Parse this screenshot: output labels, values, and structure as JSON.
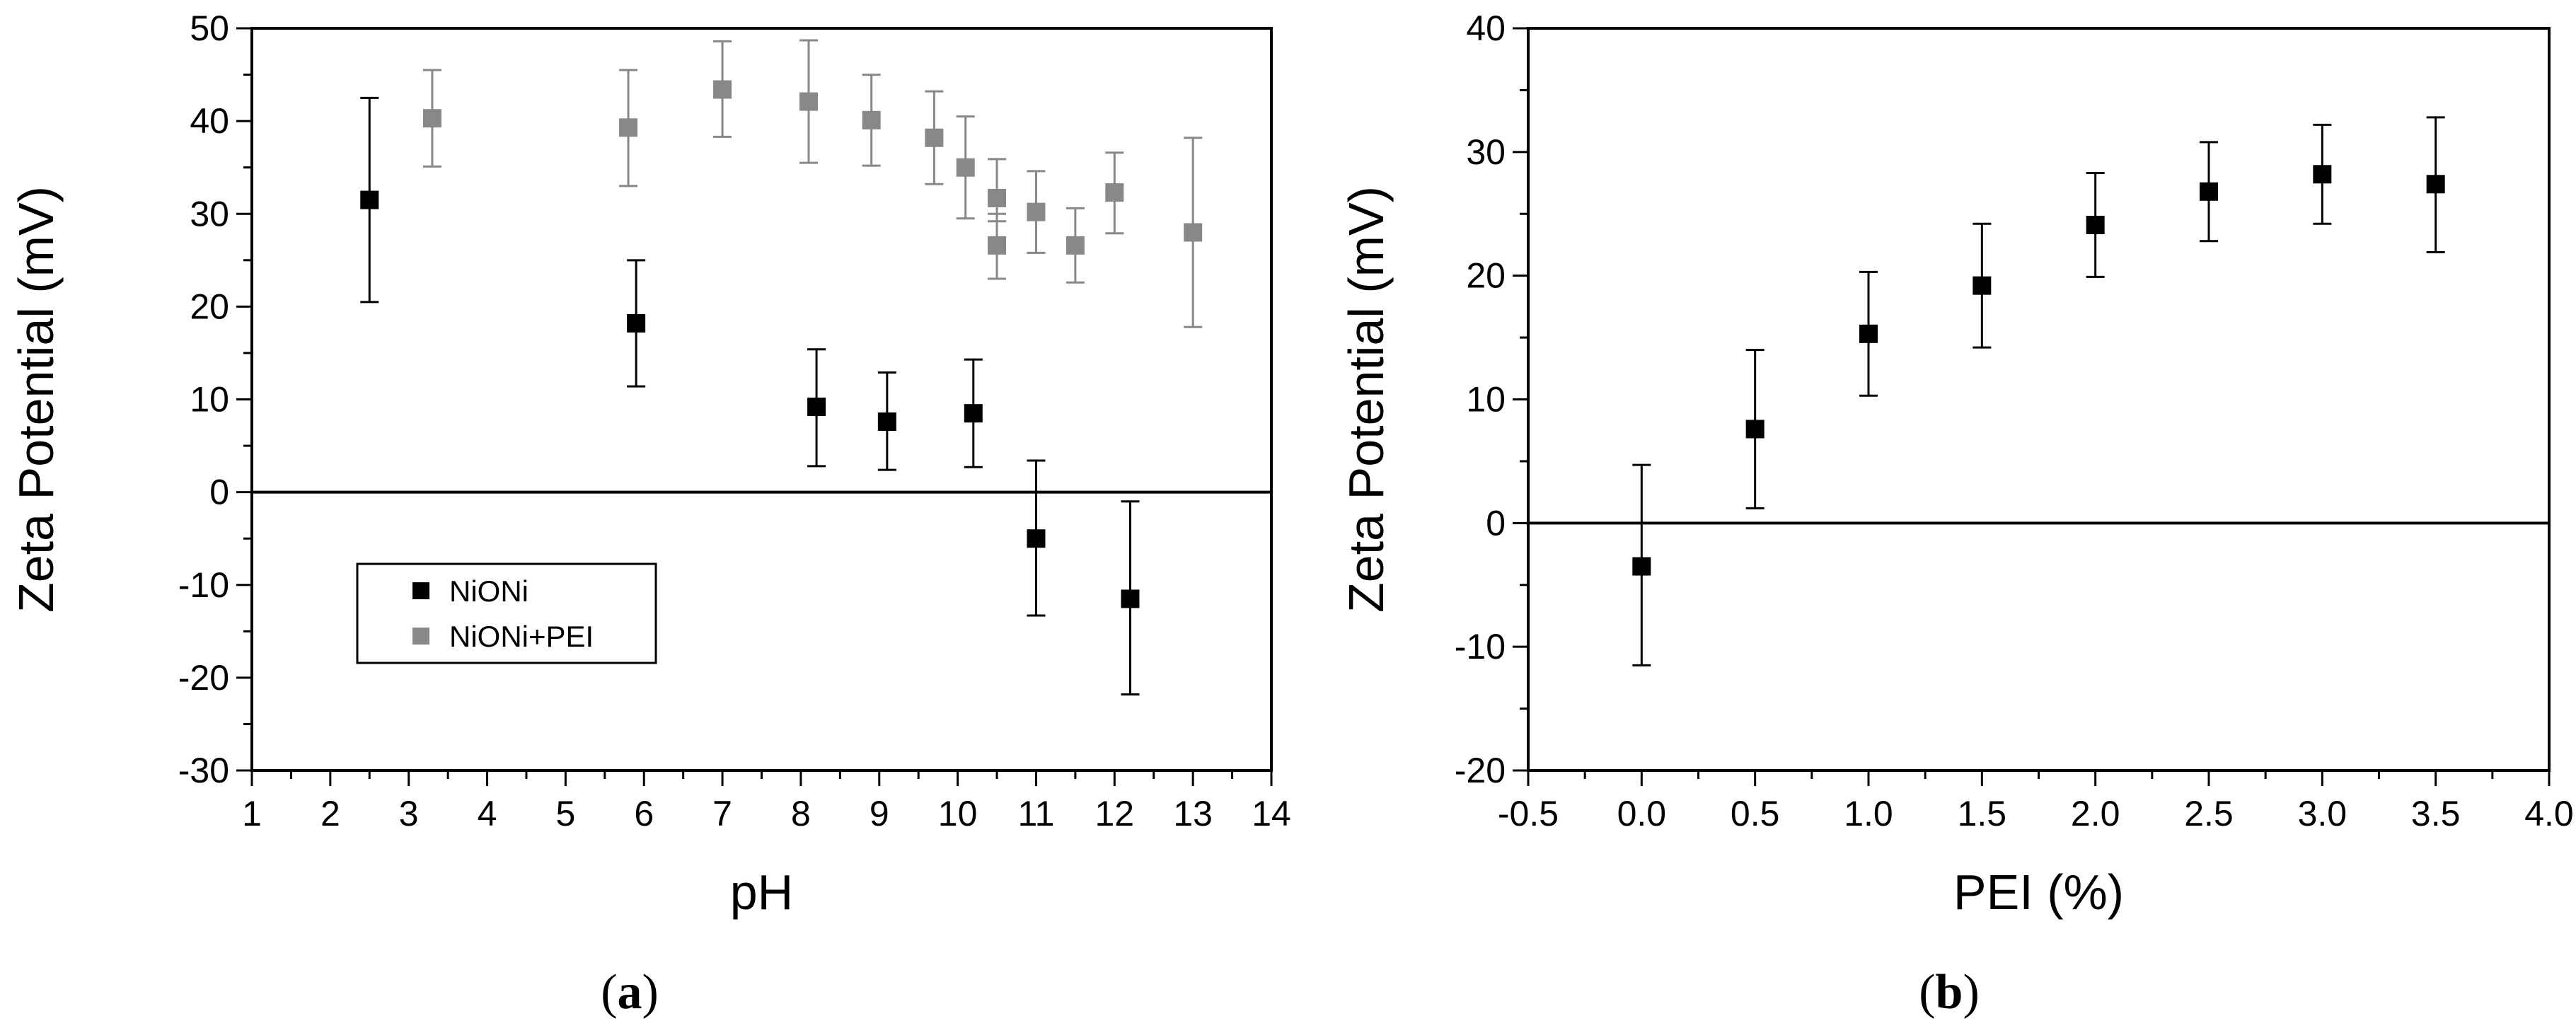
{
  "chart_data": [
    {
      "type": "scatter",
      "panel_label": "a",
      "xlabel": "pH",
      "ylabel": "Zeta Potential (mV)",
      "xlim": [
        1,
        14
      ],
      "ylim": [
        -30,
        50
      ],
      "x_ticks": [
        1,
        2,
        3,
        4,
        5,
        6,
        7,
        8,
        9,
        10,
        11,
        12,
        13,
        14
      ],
      "x_tick_labels": [
        "1",
        "2",
        "3",
        "4",
        "5",
        "6",
        "7",
        "8",
        "9",
        "10",
        "11",
        "12",
        "13",
        "14"
      ],
      "y_ticks": [
        -30,
        -20,
        -10,
        0,
        10,
        20,
        30,
        40,
        50
      ],
      "y_tick_labels": [
        "-30",
        "-20",
        "-10",
        "0",
        "10",
        "20",
        "30",
        "40",
        "50"
      ],
      "zero_line": true,
      "grid": false,
      "legend_position": "lower-left",
      "series": [
        {
          "name": "NiONi",
          "color": "#000000",
          "marker": "square",
          "points": [
            {
              "x": 2.5,
              "y": 31.5,
              "yerr_low": 20.5,
              "yerr_high": 42.5
            },
            {
              "x": 5.9,
              "y": 18.2,
              "yerr_low": 11.4,
              "yerr_high": 25.0
            },
            {
              "x": 8.2,
              "y": 9.2,
              "yerr_low": 2.8,
              "yerr_high": 15.4
            },
            {
              "x": 9.1,
              "y": 7.6,
              "yerr_low": 2.4,
              "yerr_high": 12.9
            },
            {
              "x": 10.2,
              "y": 8.5,
              "yerr_low": 2.7,
              "yerr_high": 14.3
            },
            {
              "x": 11.0,
              "y": -5.0,
              "yerr_low": -13.3,
              "yerr_high": 3.4
            },
            {
              "x": 12.2,
              "y": -11.5,
              "yerr_low": -21.8,
              "yerr_high": -1.0
            }
          ]
        },
        {
          "name": "NiONi+PEI",
          "color": "#888888",
          "marker": "square",
          "points": [
            {
              "x": 3.3,
              "y": 40.3,
              "yerr_low": 35.1,
              "yerr_high": 45.5
            },
            {
              "x": 5.8,
              "y": 39.3,
              "yerr_low": 33.0,
              "yerr_high": 45.5
            },
            {
              "x": 7.0,
              "y": 43.4,
              "yerr_low": 38.3,
              "yerr_high": 48.6
            },
            {
              "x": 8.1,
              "y": 42.1,
              "yerr_low": 35.5,
              "yerr_high": 48.7
            },
            {
              "x": 8.9,
              "y": 40.1,
              "yerr_low": 35.2,
              "yerr_high": 45.0
            },
            {
              "x": 9.7,
              "y": 38.2,
              "yerr_low": 33.2,
              "yerr_high": 43.2
            },
            {
              "x": 10.1,
              "y": 35.0,
              "yerr_low": 29.5,
              "yerr_high": 40.5
            },
            {
              "x": 10.5,
              "y": 31.7,
              "yerr_low": 29.2,
              "yerr_high": 35.9
            },
            {
              "x": 10.5,
              "y": 26.6,
              "yerr_low": 23.0,
              "yerr_high": 30.0
            },
            {
              "x": 11.0,
              "y": 30.2,
              "yerr_low": 25.8,
              "yerr_high": 34.6
            },
            {
              "x": 11.5,
              "y": 26.6,
              "yerr_low": 22.6,
              "yerr_high": 30.6
            },
            {
              "x": 12.0,
              "y": 32.3,
              "yerr_low": 27.9,
              "yerr_high": 36.6
            },
            {
              "x": 13.0,
              "y": 28.0,
              "yerr_low": 17.8,
              "yerr_high": 38.2
            }
          ]
        }
      ]
    },
    {
      "type": "scatter",
      "panel_label": "b",
      "xlabel": "PEI (%)",
      "ylabel": "Zeta Potential (mV)",
      "xlim": [
        -0.5,
        4.0
      ],
      "ylim": [
        -20,
        40
      ],
      "x_ticks": [
        -0.5,
        0.0,
        0.5,
        1.0,
        1.5,
        2.0,
        2.5,
        3.0,
        3.5,
        4.0
      ],
      "x_tick_labels": [
        "-0.5",
        "0.0",
        "0.5",
        "1.0",
        "1.5",
        "2.0",
        "2.5",
        "3.0",
        "3.5",
        "4.0"
      ],
      "y_ticks": [
        -20,
        -10,
        0,
        10,
        20,
        30,
        40
      ],
      "y_tick_labels": [
        "-20",
        "-10",
        "0",
        "10",
        "20",
        "30",
        "40"
      ],
      "zero_line": true,
      "grid": false,
      "series": [
        {
          "color": "#000000",
          "marker": "square",
          "points": [
            {
              "x": 0.0,
              "y": -3.5,
              "yerr_low": -11.5,
              "yerr_high": 4.7
            },
            {
              "x": 0.5,
              "y": 7.6,
              "yerr_low": 1.2,
              "yerr_high": 14.0
            },
            {
              "x": 1.0,
              "y": 15.3,
              "yerr_low": 10.3,
              "yerr_high": 20.3
            },
            {
              "x": 1.5,
              "y": 19.2,
              "yerr_low": 14.2,
              "yerr_high": 24.2
            },
            {
              "x": 2.0,
              "y": 24.1,
              "yerr_low": 19.9,
              "yerr_high": 28.3
            },
            {
              "x": 2.5,
              "y": 26.8,
              "yerr_low": 22.8,
              "yerr_high": 30.8
            },
            {
              "x": 3.0,
              "y": 28.2,
              "yerr_low": 24.2,
              "yerr_high": 32.2
            },
            {
              "x": 3.5,
              "y": 27.4,
              "yerr_low": 21.9,
              "yerr_high": 32.8
            }
          ]
        }
      ]
    }
  ]
}
